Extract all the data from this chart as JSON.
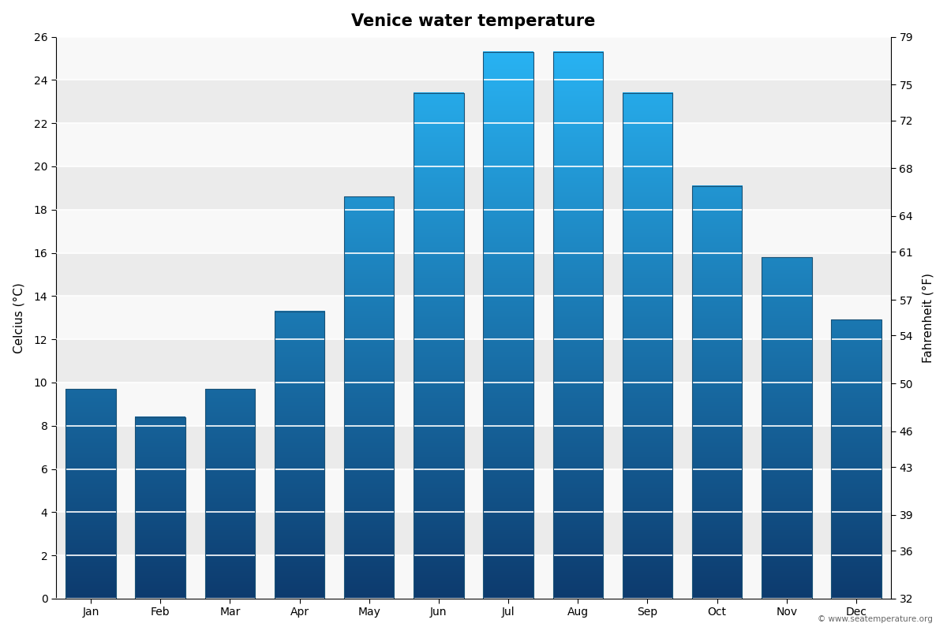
{
  "title": "Venice water temperature",
  "months": [
    "Jan",
    "Feb",
    "Mar",
    "Apr",
    "May",
    "Jun",
    "Jul",
    "Aug",
    "Sep",
    "Oct",
    "Nov",
    "Dec"
  ],
  "temps_c": [
    9.7,
    8.4,
    9.7,
    13.3,
    18.6,
    23.4,
    25.3,
    25.3,
    23.4,
    19.1,
    15.8,
    12.9
  ],
  "ylim_c": [
    0,
    26
  ],
  "yticks_c": [
    0,
    2,
    4,
    6,
    8,
    10,
    12,
    14,
    16,
    18,
    20,
    22,
    24,
    26
  ],
  "ylabel_left": "Celcius (°C)",
  "ylabel_right": "Fahrenheit (°F)",
  "yticks_f": [
    32,
    36,
    39,
    43,
    46,
    50,
    54,
    57,
    61,
    64,
    68,
    72,
    75,
    79
  ],
  "ylim_f": [
    32,
    79
  ],
  "color_bottom": "#0d3b6e",
  "color_top": "#29b6f6",
  "bar_edge_color": "#1a5276",
  "background_color": "#ffffff",
  "plot_bg_stripe_light": "#f8f8f8",
  "plot_bg_stripe_dark": "#ebebeb",
  "grid_color": "#ffffff",
  "title_fontsize": 15,
  "axis_label_fontsize": 11,
  "tick_fontsize": 10,
  "watermark": "© www.seatemperature.org",
  "bar_width": 0.72
}
